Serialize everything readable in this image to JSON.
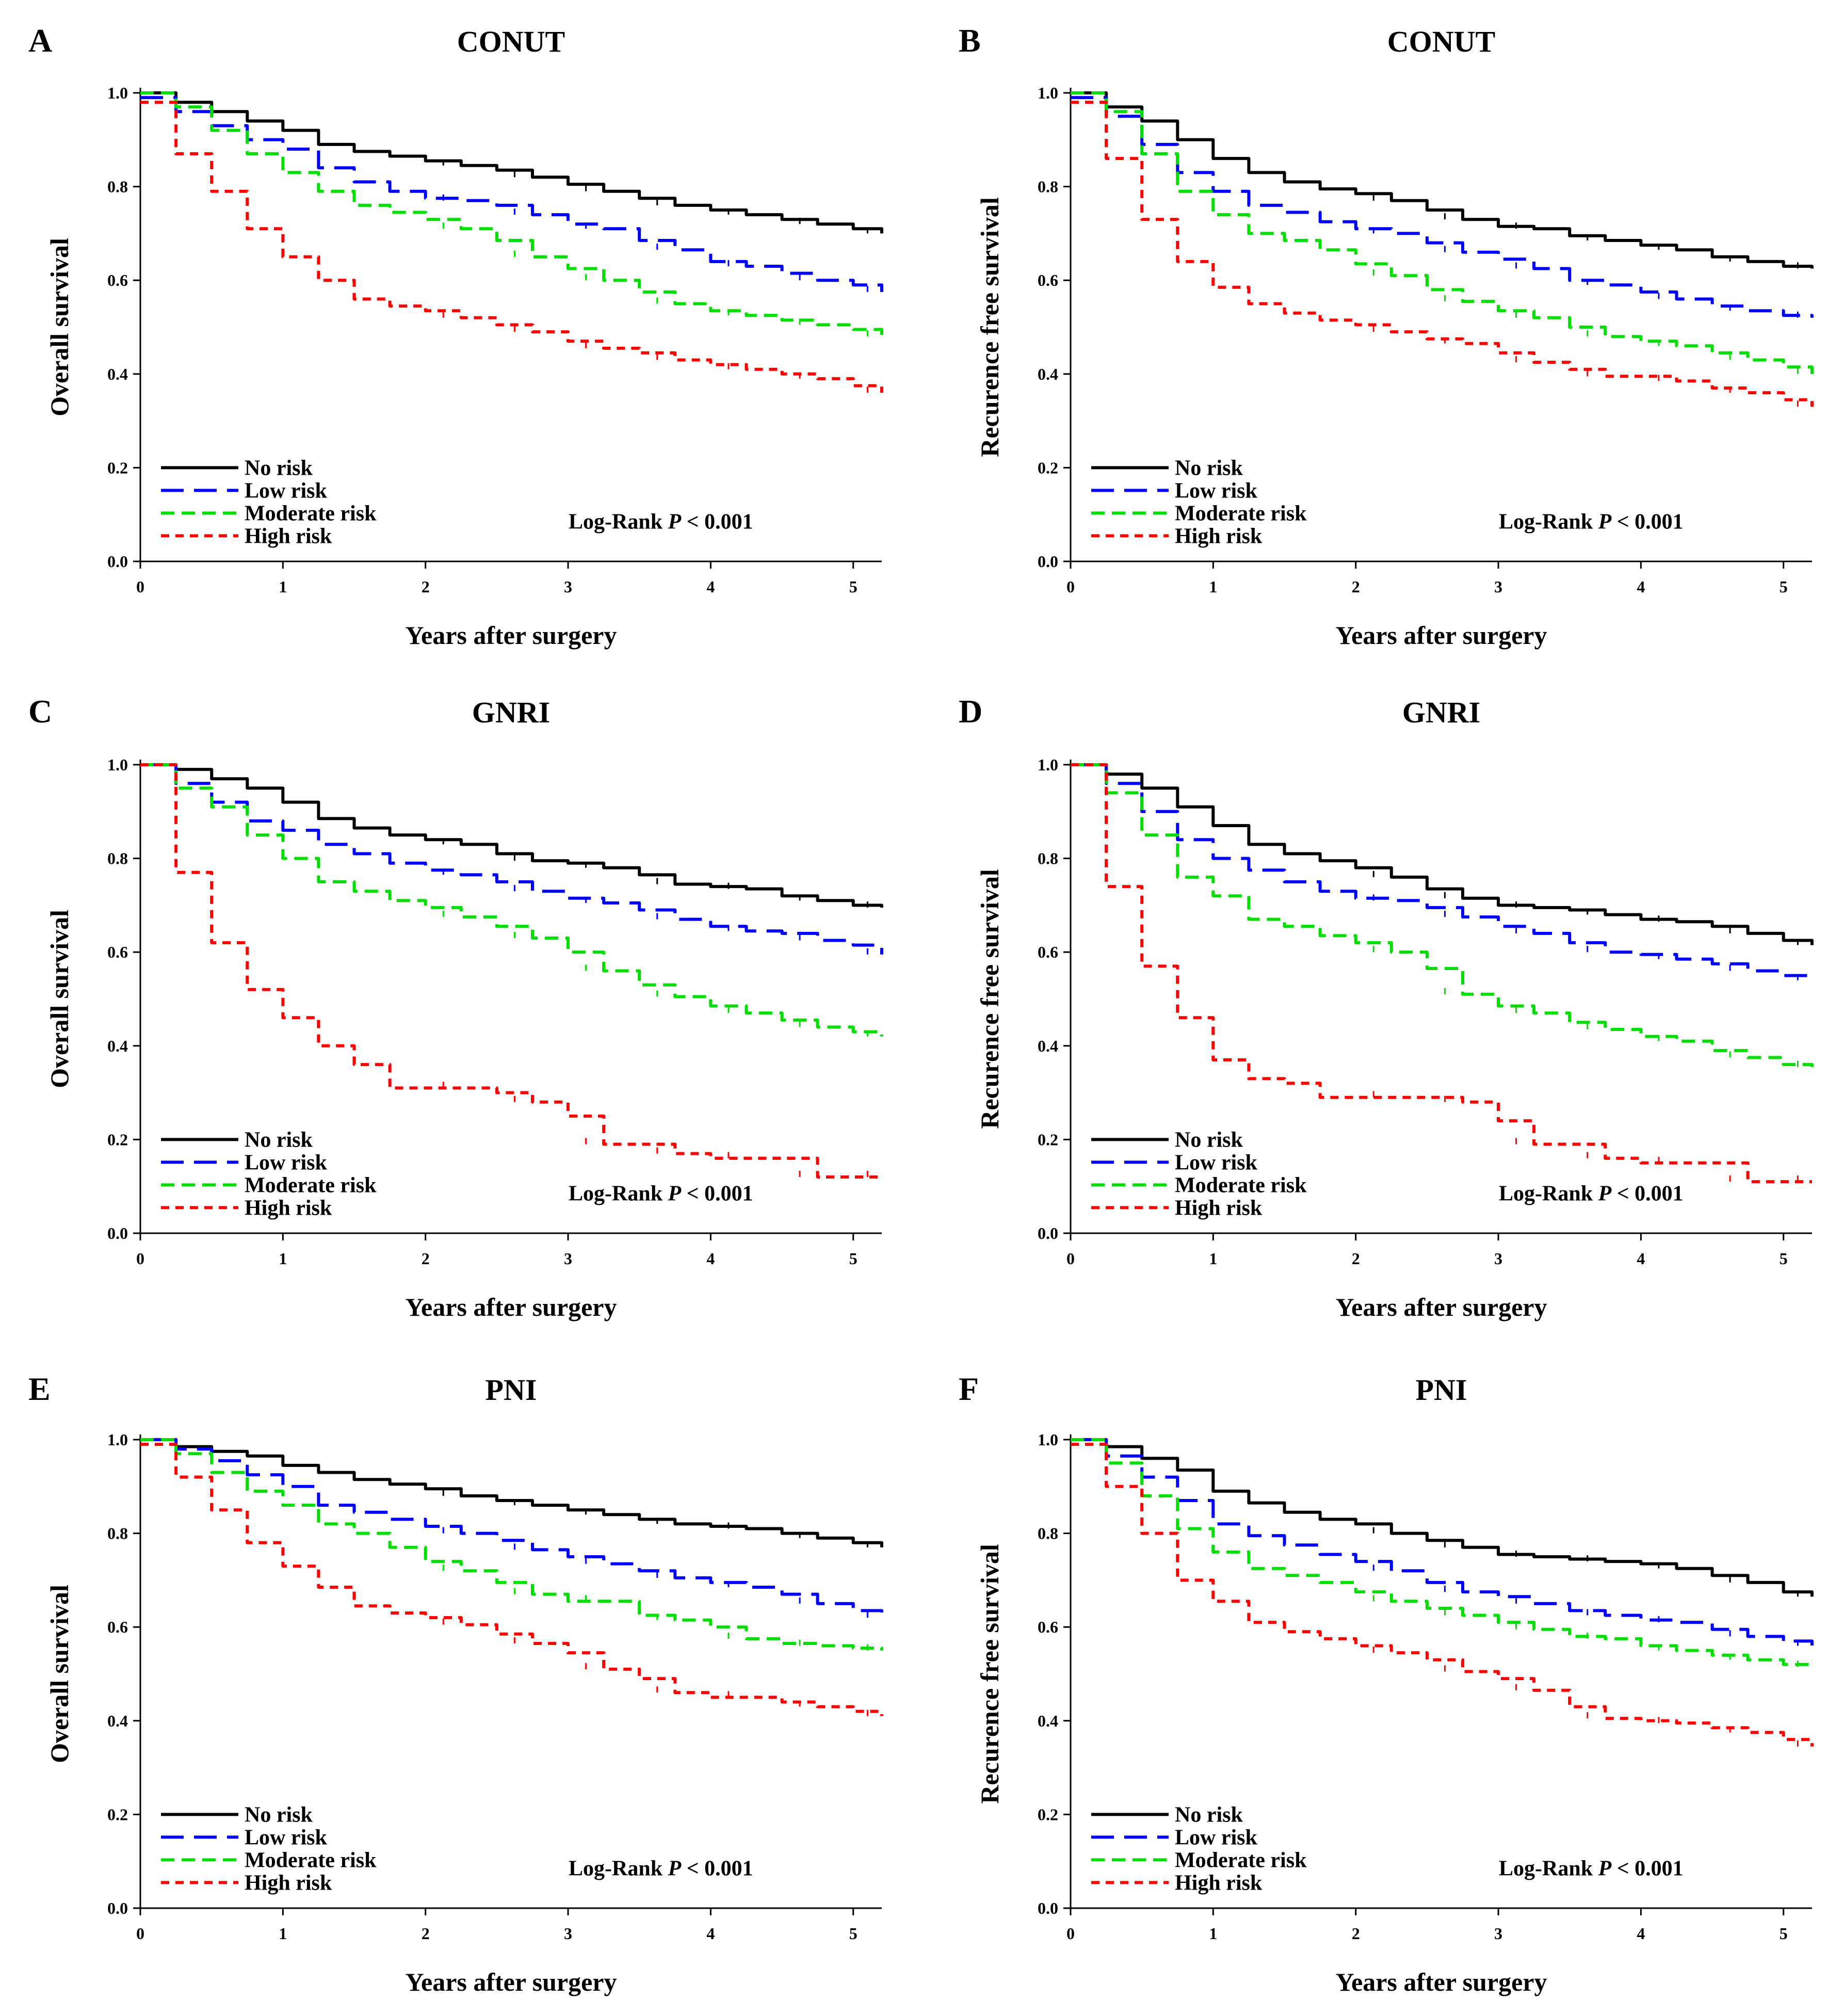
{
  "figure": {
    "background": "#ffffff"
  },
  "legend": {
    "labels": [
      "No risk",
      "Low risk",
      "Moderate risk",
      "High risk"
    ],
    "colors": [
      "#000000",
      "#0000ff",
      "#00dd00",
      "#ff0000"
    ],
    "dashes": [
      "solid",
      "long-dash",
      "dash",
      "short-dash"
    ]
  },
  "logrank": {
    "prefix": "Log-Rank ",
    "p": "P",
    "suffix": " < 0.001"
  },
  "chart_data": [
    {
      "letter": "A",
      "title": "CONUT",
      "type": "line",
      "xlabel": "Years after surgery",
      "ylabel": "Overall survival",
      "xlim": [
        0,
        5.2
      ],
      "ylim": [
        0,
        1.0
      ],
      "xticks": [
        0,
        1,
        2,
        3,
        4,
        5
      ],
      "yticks": [
        0.0,
        0.2,
        0.4,
        0.6,
        0.8,
        1.0
      ],
      "x": [
        0,
        0.25,
        0.5,
        0.75,
        1.0,
        1.25,
        1.5,
        1.75,
        2.0,
        2.25,
        2.5,
        2.75,
        3.0,
        3.25,
        3.5,
        3.75,
        4.0,
        4.25,
        4.5,
        4.75,
        5.0,
        5.2
      ],
      "series": [
        {
          "name": "No risk",
          "values": [
            1.0,
            0.98,
            0.96,
            0.94,
            0.92,
            0.89,
            0.875,
            0.865,
            0.855,
            0.845,
            0.835,
            0.82,
            0.805,
            0.79,
            0.775,
            0.76,
            0.75,
            0.74,
            0.73,
            0.72,
            0.71,
            0.7
          ]
        },
        {
          "name": "Low risk",
          "values": [
            0.99,
            0.96,
            0.93,
            0.9,
            0.88,
            0.84,
            0.81,
            0.79,
            0.775,
            0.77,
            0.76,
            0.74,
            0.72,
            0.71,
            0.685,
            0.665,
            0.64,
            0.63,
            0.615,
            0.6,
            0.59,
            0.575
          ]
        },
        {
          "name": "Moderate risk",
          "values": [
            1.0,
            0.97,
            0.92,
            0.87,
            0.83,
            0.79,
            0.76,
            0.745,
            0.73,
            0.71,
            0.685,
            0.65,
            0.625,
            0.6,
            0.575,
            0.55,
            0.535,
            0.525,
            0.515,
            0.505,
            0.495,
            0.48
          ]
        },
        {
          "name": "High risk",
          "values": [
            0.98,
            0.87,
            0.79,
            0.71,
            0.65,
            0.6,
            0.56,
            0.545,
            0.535,
            0.52,
            0.505,
            0.49,
            0.47,
            0.455,
            0.445,
            0.43,
            0.42,
            0.41,
            0.4,
            0.39,
            0.375,
            0.36
          ]
        }
      ]
    },
    {
      "letter": "B",
      "title": "CONUT",
      "type": "line",
      "xlabel": "Years after surgery",
      "ylabel": "Recurence free survival",
      "xlim": [
        0,
        5.2
      ],
      "ylim": [
        0,
        1.0
      ],
      "xticks": [
        0,
        1,
        2,
        3,
        4,
        5
      ],
      "yticks": [
        0.0,
        0.2,
        0.4,
        0.6,
        0.8,
        1.0
      ],
      "x": [
        0,
        0.25,
        0.5,
        0.75,
        1.0,
        1.25,
        1.5,
        1.75,
        2.0,
        2.25,
        2.5,
        2.75,
        3.0,
        3.25,
        3.5,
        3.75,
        4.0,
        4.25,
        4.5,
        4.75,
        5.0,
        5.2
      ],
      "series": [
        {
          "name": "No risk",
          "values": [
            1.0,
            0.97,
            0.94,
            0.9,
            0.86,
            0.83,
            0.81,
            0.795,
            0.785,
            0.77,
            0.75,
            0.73,
            0.715,
            0.71,
            0.695,
            0.685,
            0.675,
            0.665,
            0.65,
            0.64,
            0.63,
            0.625
          ]
        },
        {
          "name": "Low risk",
          "values": [
            0.99,
            0.95,
            0.89,
            0.83,
            0.79,
            0.76,
            0.745,
            0.725,
            0.71,
            0.7,
            0.68,
            0.66,
            0.645,
            0.625,
            0.6,
            0.59,
            0.575,
            0.56,
            0.545,
            0.535,
            0.525,
            0.52
          ]
        },
        {
          "name": "Moderate risk",
          "values": [
            1.0,
            0.96,
            0.87,
            0.79,
            0.74,
            0.7,
            0.685,
            0.665,
            0.635,
            0.61,
            0.58,
            0.555,
            0.535,
            0.52,
            0.5,
            0.48,
            0.47,
            0.46,
            0.445,
            0.43,
            0.415,
            0.4
          ]
        },
        {
          "name": "High risk",
          "values": [
            0.98,
            0.86,
            0.73,
            0.64,
            0.585,
            0.55,
            0.53,
            0.515,
            0.505,
            0.49,
            0.475,
            0.465,
            0.445,
            0.425,
            0.41,
            0.395,
            0.395,
            0.385,
            0.37,
            0.36,
            0.345,
            0.33
          ]
        }
      ]
    },
    {
      "letter": "C",
      "title": "GNRI",
      "type": "line",
      "xlabel": "Years after surgery",
      "ylabel": "Overall survival",
      "xlim": [
        0,
        5.2
      ],
      "ylim": [
        0,
        1.0
      ],
      "xticks": [
        0,
        1,
        2,
        3,
        4,
        5
      ],
      "yticks": [
        0.0,
        0.2,
        0.4,
        0.6,
        0.8,
        1.0
      ],
      "x": [
        0,
        0.25,
        0.5,
        0.75,
        1.0,
        1.25,
        1.5,
        1.75,
        2.0,
        2.25,
        2.5,
        2.75,
        3.0,
        3.25,
        3.5,
        3.75,
        4.0,
        4.25,
        4.5,
        4.75,
        5.0,
        5.2
      ],
      "series": [
        {
          "name": "No risk",
          "values": [
            1.0,
            0.99,
            0.97,
            0.95,
            0.92,
            0.885,
            0.865,
            0.85,
            0.84,
            0.83,
            0.81,
            0.795,
            0.79,
            0.78,
            0.765,
            0.745,
            0.74,
            0.735,
            0.72,
            0.71,
            0.7,
            0.695
          ]
        },
        {
          "name": "Low risk",
          "values": [
            1.0,
            0.96,
            0.92,
            0.88,
            0.86,
            0.83,
            0.81,
            0.79,
            0.775,
            0.765,
            0.75,
            0.73,
            0.715,
            0.705,
            0.69,
            0.67,
            0.655,
            0.645,
            0.64,
            0.625,
            0.615,
            0.595
          ]
        },
        {
          "name": "Moderate risk",
          "values": [
            1.0,
            0.95,
            0.91,
            0.85,
            0.8,
            0.75,
            0.73,
            0.71,
            0.695,
            0.675,
            0.655,
            0.63,
            0.6,
            0.56,
            0.53,
            0.505,
            0.485,
            0.47,
            0.455,
            0.44,
            0.43,
            0.42
          ]
        },
        {
          "name": "High risk",
          "values": [
            1.0,
            0.77,
            0.62,
            0.52,
            0.46,
            0.4,
            0.36,
            0.31,
            0.31,
            0.31,
            0.3,
            0.28,
            0.25,
            0.19,
            0.19,
            0.17,
            0.16,
            0.16,
            0.16,
            0.12,
            0.12,
            0.12
          ]
        }
      ]
    },
    {
      "letter": "D",
      "title": "GNRI",
      "type": "line",
      "xlabel": "Years after surgery",
      "ylabel": "Recurence free survival",
      "xlim": [
        0,
        5.2
      ],
      "ylim": [
        0,
        1.0
      ],
      "xticks": [
        0,
        1,
        2,
        3,
        4,
        5
      ],
      "yticks": [
        0.0,
        0.2,
        0.4,
        0.6,
        0.8,
        1.0
      ],
      "x": [
        0,
        0.25,
        0.5,
        0.75,
        1.0,
        1.25,
        1.5,
        1.75,
        2.0,
        2.25,
        2.5,
        2.75,
        3.0,
        3.25,
        3.5,
        3.75,
        4.0,
        4.25,
        4.5,
        4.75,
        5.0,
        5.2
      ],
      "series": [
        {
          "name": "No risk",
          "values": [
            1.0,
            0.98,
            0.95,
            0.91,
            0.87,
            0.83,
            0.81,
            0.795,
            0.78,
            0.76,
            0.735,
            0.715,
            0.7,
            0.695,
            0.69,
            0.68,
            0.67,
            0.665,
            0.655,
            0.64,
            0.625,
            0.615
          ]
        },
        {
          "name": "Low risk",
          "values": [
            1.0,
            0.96,
            0.9,
            0.84,
            0.8,
            0.775,
            0.75,
            0.73,
            0.715,
            0.71,
            0.695,
            0.675,
            0.655,
            0.64,
            0.62,
            0.6,
            0.595,
            0.585,
            0.575,
            0.56,
            0.55,
            0.54
          ]
        },
        {
          "name": "Moderate risk",
          "values": [
            1.0,
            0.94,
            0.85,
            0.76,
            0.72,
            0.67,
            0.655,
            0.635,
            0.62,
            0.6,
            0.565,
            0.51,
            0.485,
            0.47,
            0.45,
            0.435,
            0.42,
            0.41,
            0.39,
            0.375,
            0.36,
            0.355
          ]
        },
        {
          "name": "High risk",
          "values": [
            1.0,
            0.74,
            0.57,
            0.46,
            0.37,
            0.33,
            0.32,
            0.29,
            0.29,
            0.29,
            0.29,
            0.28,
            0.24,
            0.19,
            0.19,
            0.16,
            0.15,
            0.15,
            0.15,
            0.11,
            0.11,
            0.11
          ]
        }
      ]
    },
    {
      "letter": "E",
      "title": "PNI",
      "type": "line",
      "xlabel": "Years after surgery",
      "ylabel": "Overall survival",
      "xlim": [
        0,
        5.2
      ],
      "ylim": [
        0,
        1.0
      ],
      "xticks": [
        0,
        1,
        2,
        3,
        4,
        5
      ],
      "yticks": [
        0.0,
        0.2,
        0.4,
        0.6,
        0.8,
        1.0
      ],
      "x": [
        0,
        0.25,
        0.5,
        0.75,
        1.0,
        1.25,
        1.5,
        1.75,
        2.0,
        2.25,
        2.5,
        2.75,
        3.0,
        3.25,
        3.5,
        3.75,
        4.0,
        4.25,
        4.5,
        4.75,
        5.0,
        5.2
      ],
      "series": [
        {
          "name": "No risk",
          "values": [
            1.0,
            0.985,
            0.975,
            0.965,
            0.945,
            0.93,
            0.915,
            0.905,
            0.895,
            0.88,
            0.87,
            0.86,
            0.85,
            0.84,
            0.83,
            0.82,
            0.815,
            0.81,
            0.8,
            0.79,
            0.78,
            0.77
          ]
        },
        {
          "name": "Low risk",
          "values": [
            1.0,
            0.98,
            0.955,
            0.925,
            0.9,
            0.86,
            0.845,
            0.83,
            0.815,
            0.8,
            0.785,
            0.765,
            0.75,
            0.735,
            0.72,
            0.705,
            0.695,
            0.685,
            0.67,
            0.65,
            0.635,
            0.62
          ]
        },
        {
          "name": "Moderate risk",
          "values": [
            1.0,
            0.97,
            0.93,
            0.89,
            0.86,
            0.82,
            0.8,
            0.77,
            0.74,
            0.72,
            0.695,
            0.67,
            0.655,
            0.655,
            0.625,
            0.615,
            0.6,
            0.575,
            0.565,
            0.56,
            0.555,
            0.55
          ]
        },
        {
          "name": "High risk",
          "values": [
            0.99,
            0.92,
            0.85,
            0.78,
            0.73,
            0.685,
            0.645,
            0.63,
            0.62,
            0.605,
            0.585,
            0.565,
            0.545,
            0.51,
            0.49,
            0.46,
            0.45,
            0.45,
            0.44,
            0.43,
            0.42,
            0.41
          ]
        }
      ]
    },
    {
      "letter": "F",
      "title": "PNI",
      "type": "line",
      "xlabel": "Years after surgery",
      "ylabel": "Recurence free survival",
      "xlim": [
        0,
        5.2
      ],
      "ylim": [
        0,
        1.0
      ],
      "xticks": [
        0,
        1,
        2,
        3,
        4,
        5
      ],
      "yticks": [
        0.0,
        0.2,
        0.4,
        0.6,
        0.8,
        1.0
      ],
      "x": [
        0,
        0.25,
        0.5,
        0.75,
        1.0,
        1.25,
        1.5,
        1.75,
        2.0,
        2.25,
        2.5,
        2.75,
        3.0,
        3.25,
        3.5,
        3.75,
        4.0,
        4.25,
        4.5,
        4.75,
        5.0,
        5.2
      ],
      "series": [
        {
          "name": "No risk",
          "values": [
            1.0,
            0.985,
            0.96,
            0.935,
            0.89,
            0.865,
            0.845,
            0.83,
            0.82,
            0.8,
            0.785,
            0.77,
            0.755,
            0.75,
            0.745,
            0.74,
            0.735,
            0.725,
            0.71,
            0.695,
            0.675,
            0.665
          ]
        },
        {
          "name": "Low risk",
          "values": [
            1.0,
            0.965,
            0.92,
            0.87,
            0.82,
            0.795,
            0.775,
            0.755,
            0.74,
            0.72,
            0.695,
            0.675,
            0.665,
            0.65,
            0.635,
            0.625,
            0.615,
            0.61,
            0.595,
            0.58,
            0.57,
            0.56
          ]
        },
        {
          "name": "Moderate risk",
          "values": [
            1.0,
            0.95,
            0.88,
            0.81,
            0.76,
            0.725,
            0.71,
            0.695,
            0.675,
            0.655,
            0.64,
            0.625,
            0.61,
            0.595,
            0.58,
            0.575,
            0.56,
            0.55,
            0.54,
            0.53,
            0.52,
            0.515
          ]
        },
        {
          "name": "High risk",
          "values": [
            0.99,
            0.9,
            0.8,
            0.7,
            0.655,
            0.61,
            0.59,
            0.575,
            0.56,
            0.545,
            0.53,
            0.505,
            0.49,
            0.465,
            0.43,
            0.405,
            0.4,
            0.395,
            0.385,
            0.375,
            0.36,
            0.345
          ]
        }
      ]
    }
  ]
}
